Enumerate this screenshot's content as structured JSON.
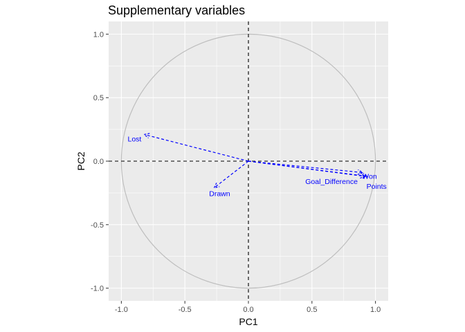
{
  "chart_data": {
    "type": "scatter",
    "title": "Supplementary variables",
    "xlabel": "PC1",
    "ylabel": "PC2",
    "xlim": [
      -1.1,
      1.1
    ],
    "ylim": [
      -1.1,
      1.1
    ],
    "x_ticks": [
      -1.0,
      -0.5,
      0.0,
      0.5,
      1.0
    ],
    "x_tick_labels": [
      "-1.0",
      "-0.5",
      "0.0",
      "0.5",
      "1.0"
    ],
    "y_ticks": [
      -1.0,
      -0.5,
      0.0,
      0.5,
      1.0
    ],
    "y_tick_labels": [
      "-1.0",
      "-0.5",
      "0.0",
      "0.5",
      "1.0"
    ],
    "grid": true,
    "unit_circle": true,
    "reference_lines": {
      "x": 0,
      "y": 0,
      "style": "dashed"
    },
    "arrow_color": "#0000ff",
    "panel_color": "#ebebeb",
    "circle_color": "#bebebe",
    "variables": [
      {
        "label": "Lost",
        "x": -0.82,
        "y": 0.21
      },
      {
        "label": "Drawn",
        "x": -0.27,
        "y": -0.21
      },
      {
        "label": "Won",
        "x": 0.9,
        "y": -0.09
      },
      {
        "label": "Goal_Difference",
        "x": 0.92,
        "y": -0.12
      },
      {
        "label": "Points",
        "x": 0.94,
        "y": -0.12
      }
    ]
  }
}
